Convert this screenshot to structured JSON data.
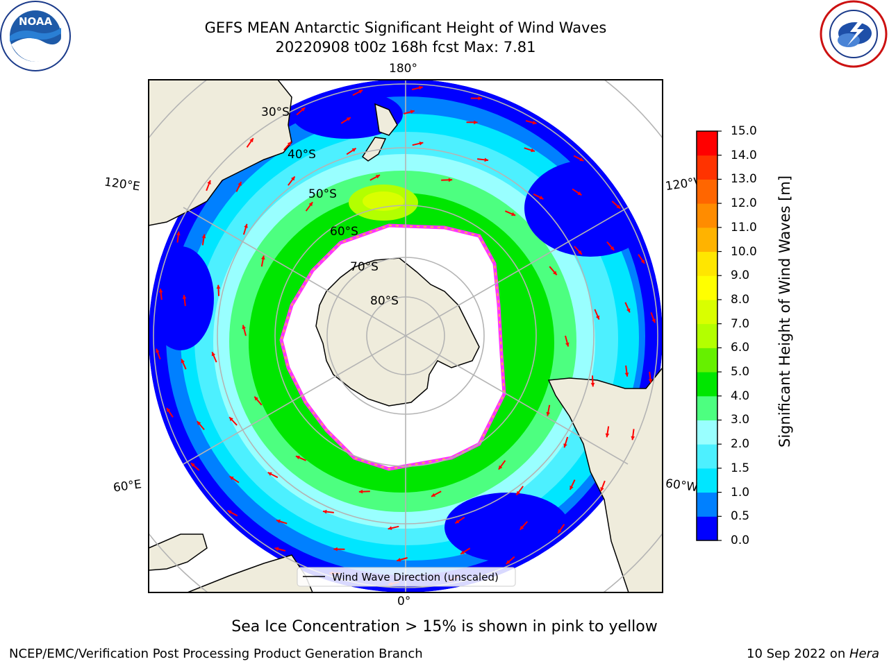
{
  "header": {
    "title_line1": "GEFS MEAN Antarctic Significant Height of Wind Waves",
    "title_line2": "20220908 t00z 168h fcst   Max: 7.81",
    "logo_left_text": "NOAA",
    "logo_left_ring": "NATIONAL OCEANIC AND ATMOSPHERIC ADMINISTRATION · U.S. DEPARTMENT OF COMMERCE",
    "logo_right_ring": "NATIONAL WEATHER SERVICE"
  },
  "map": {
    "projection": "south-polar-stereographic",
    "meridian_labels": {
      "top": "180°",
      "bottom": "0°",
      "left_upper": "120°E",
      "left_lower": "60°E",
      "right_upper": "120°W",
      "right_lower": "60°W"
    },
    "latitude_labels": [
      "30°S",
      "40°S",
      "50°S",
      "60°S",
      "70°S",
      "80°S"
    ],
    "legend_label": "Wind Wave Direction (unscaled)",
    "colors": {
      "land": "#efecdc",
      "ocean_low": "#0000ff",
      "ice_edge": "#ff33ff",
      "arrow": "#ff0000"
    }
  },
  "colorbar": {
    "label": "Significant Height of Wind Waves [m]",
    "ticks": [
      "0.0",
      "0.5",
      "1.0",
      "1.5",
      "2.0",
      "3.0",
      "4.0",
      "5.0",
      "6.0",
      "7.0",
      "8.0",
      "9.0",
      "10.0",
      "11.0",
      "12.0",
      "13.0",
      "14.0",
      "15.0"
    ],
    "colors": [
      "#0000ff",
      "#0080ff",
      "#00e6ff",
      "#4df0ff",
      "#99ffff",
      "#4dff80",
      "#00e600",
      "#66f000",
      "#b3ff00",
      "#d9ff00",
      "#ffff00",
      "#ffe600",
      "#ffb300",
      "#ff8c00",
      "#ff6600",
      "#ff3300",
      "#ff0000"
    ]
  },
  "caption": "Sea Ice Concentration > 15% is shown in pink to yellow",
  "footer": {
    "left": "NCEP/EMC/Verification Post Processing Product Generation Branch",
    "right_date": "10 Sep 2022 on ",
    "right_host": "Hera"
  }
}
